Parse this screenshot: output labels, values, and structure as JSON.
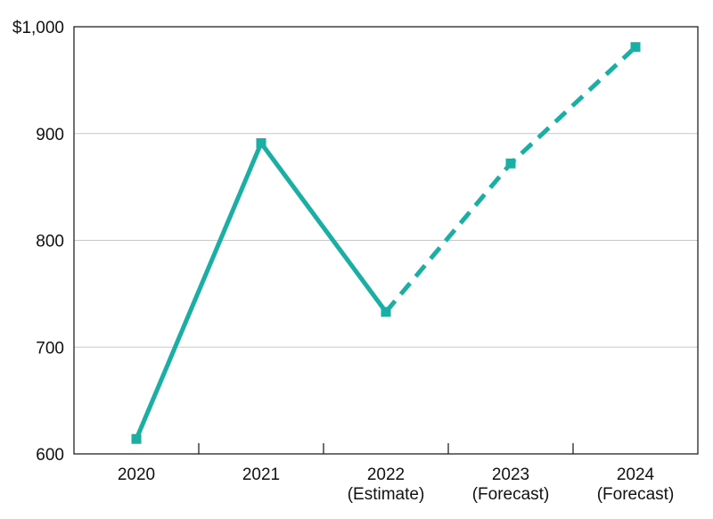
{
  "chart_data": {
    "type": "line",
    "categories": [
      "2020",
      "2021",
      "2022",
      "2023",
      "2024"
    ],
    "category_sublabels": [
      "",
      "",
      "(Estimate)",
      "(Forecast)",
      "(Forecast)"
    ],
    "series": [
      {
        "values": [
          614,
          891,
          733,
          872,
          981
        ]
      }
    ],
    "solid_through_index": 2,
    "dashed_from_index": 2,
    "y_tick_labels": [
      "600",
      "700",
      "800",
      "900",
      "$1,000"
    ],
    "y_ticks": [
      600,
      700,
      800,
      900,
      1000
    ],
    "ylim": [
      600,
      1000
    ],
    "grid": true,
    "colors": {
      "line": "#1aaea5",
      "grid": "#c8c8c8",
      "axis": "#222222"
    }
  }
}
